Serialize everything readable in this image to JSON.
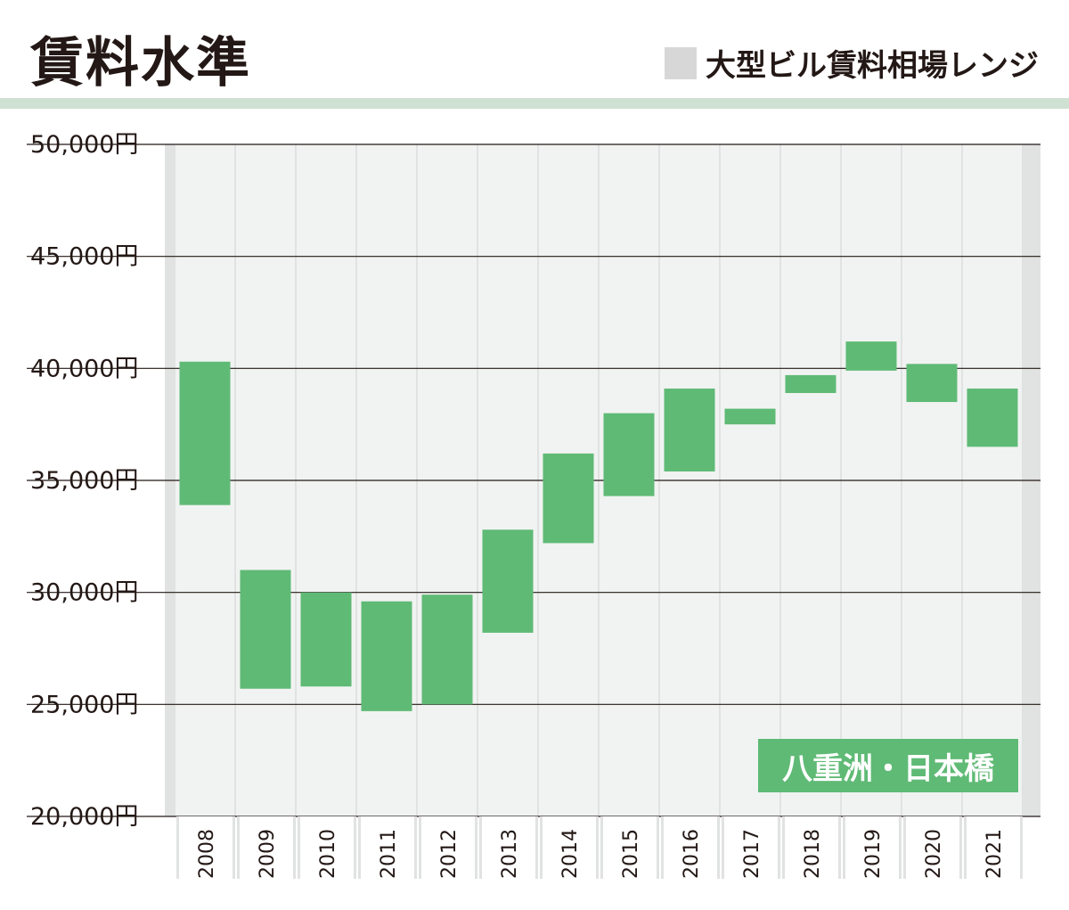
{
  "header": {
    "title": "賃料水準",
    "legend_label": "大型ビル賃料相場レンジ"
  },
  "colors": {
    "bar": "#5fba75",
    "column_fill": "#f1f3f2",
    "column_divider": "#e1e2e2",
    "legend_swatch": "#d7d7d7",
    "header_rule": "#cfe1d2",
    "text": "#231815",
    "gridline": "#231815"
  },
  "area_tag": "八重洲・日本橋",
  "chart_data": {
    "type": "bar",
    "subtype": "floating-range",
    "title": "賃料水準",
    "legend": [
      "大型ビル賃料相場レンジ"
    ],
    "ylim": [
      20000,
      50000
    ],
    "yticks": [
      {
        "value": 50000,
        "label": "50,000円"
      },
      {
        "value": 45000,
        "label": "45,000円"
      },
      {
        "value": 40000,
        "label": "40,000円"
      },
      {
        "value": 35000,
        "label": "35,000円"
      },
      {
        "value": 30000,
        "label": "30,000円"
      },
      {
        "value": 25000,
        "label": "25,000円"
      },
      {
        "value": 20000,
        "label": "20,000円"
      }
    ],
    "categories": [
      "2008",
      "2009",
      "2010",
      "2011",
      "2012",
      "2013",
      "2014",
      "2015",
      "2016",
      "2017",
      "2018",
      "2019",
      "2020",
      "2021"
    ],
    "series": [
      {
        "name": "大型ビル賃料相場レンジ",
        "low": [
          33900,
          25700,
          25800,
          24700,
          25000,
          28200,
          32200,
          34300,
          35400,
          37500,
          38900,
          39900,
          38500,
          36500
        ],
        "high": [
          40300,
          31000,
          30000,
          29600,
          29900,
          32800,
          36200,
          38000,
          39100,
          38200,
          39700,
          41200,
          40200,
          39100
        ]
      }
    ],
    "grid": true
  }
}
